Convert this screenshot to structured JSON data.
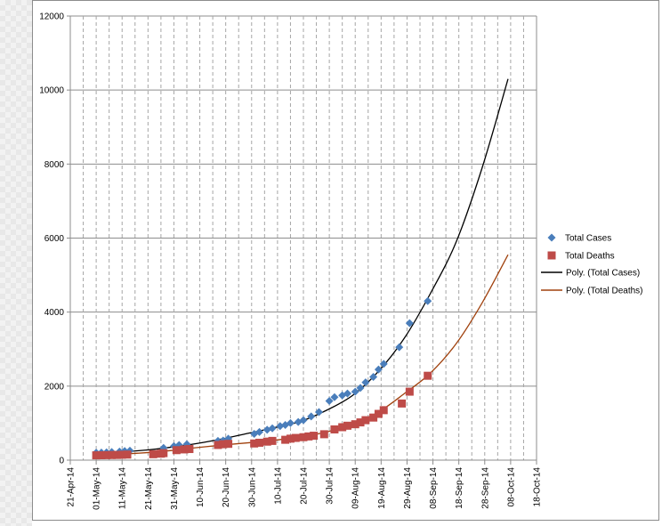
{
  "chart_data": {
    "type": "scatter",
    "title": "",
    "xlabel": "",
    "ylabel": "",
    "xlim": [
      "2014-04-21",
      "2014-10-18"
    ],
    "ylim": [
      0,
      12000
    ],
    "y_ticks": [
      "0",
      "2000",
      "4000",
      "6000",
      "8000",
      "10000",
      "12000"
    ],
    "x_ticks": [
      "21-Apr-14",
      "01-May-14",
      "11-May-14",
      "21-May-14",
      "31-May-14",
      "10-Jun-14",
      "20-Jun-14",
      "30-Jun-14",
      "10-Jul-14",
      "20-Jul-14",
      "30-Jul-14",
      "09-Aug-14",
      "19-Aug-14",
      "29-Aug-14",
      "08-Sep-14",
      "18-Sep-14",
      "28-Sep-14",
      "08-Oct-14",
      "18-Oct-14"
    ],
    "grid": {
      "horizontal": "solid",
      "vertical": "dashed"
    },
    "legend_position": "right",
    "series": [
      {
        "name": "Total Cases",
        "marker": "diamond",
        "color": "#4a7ebb",
        "points": [
          [
            "2014-05-01",
            200
          ],
          [
            "2014-05-03",
            205
          ],
          [
            "2014-05-05",
            210
          ],
          [
            "2014-05-07",
            220
          ],
          [
            "2014-05-10",
            230
          ],
          [
            "2014-05-12",
            245
          ],
          [
            "2014-05-14",
            255
          ],
          [
            "2014-05-27",
            330
          ],
          [
            "2014-05-31",
            380
          ],
          [
            "2014-06-02",
            410
          ],
          [
            "2014-06-05",
            430
          ],
          [
            "2014-06-17",
            520
          ],
          [
            "2014-06-19",
            530
          ],
          [
            "2014-06-21",
            580
          ],
          [
            "2014-07-01",
            710
          ],
          [
            "2014-07-03",
            760
          ],
          [
            "2014-07-06",
            820
          ],
          [
            "2014-07-08",
            860
          ],
          [
            "2014-07-11",
            920
          ],
          [
            "2014-07-13",
            950
          ],
          [
            "2014-07-15",
            1000
          ],
          [
            "2014-07-18",
            1030
          ],
          [
            "2014-07-20",
            1080
          ],
          [
            "2014-07-23",
            1180
          ],
          [
            "2014-07-26",
            1300
          ],
          [
            "2014-07-30",
            1600
          ],
          [
            "2014-08-01",
            1700
          ],
          [
            "2014-08-04",
            1750
          ],
          [
            "2014-08-06",
            1800
          ],
          [
            "2014-08-09",
            1850
          ],
          [
            "2014-08-11",
            1950
          ],
          [
            "2014-08-13",
            2100
          ],
          [
            "2014-08-16",
            2250
          ],
          [
            "2014-08-18",
            2450
          ],
          [
            "2014-08-20",
            2600
          ],
          [
            "2014-08-26",
            3050
          ],
          [
            "2014-08-30",
            3700
          ],
          [
            "2014-09-06",
            4300
          ]
        ]
      },
      {
        "name": "Total Deaths",
        "marker": "square",
        "color": "#be4b48",
        "points": [
          [
            "2014-05-01",
            130
          ],
          [
            "2014-05-03",
            132
          ],
          [
            "2014-05-05",
            135
          ],
          [
            "2014-05-07",
            138
          ],
          [
            "2014-05-09",
            140
          ],
          [
            "2014-05-11",
            145
          ],
          [
            "2014-05-13",
            150
          ],
          [
            "2014-05-23",
            160
          ],
          [
            "2014-05-26",
            175
          ],
          [
            "2014-05-27",
            190
          ],
          [
            "2014-06-01",
            270
          ],
          [
            "2014-06-04",
            290
          ],
          [
            "2014-06-06",
            300
          ],
          [
            "2014-06-17",
            410
          ],
          [
            "2014-06-19",
            430
          ],
          [
            "2014-06-21",
            440
          ],
          [
            "2014-07-01",
            450
          ],
          [
            "2014-07-03",
            470
          ],
          [
            "2014-07-06",
            500
          ],
          [
            "2014-07-08",
            520
          ],
          [
            "2014-07-13",
            550
          ],
          [
            "2014-07-15",
            580
          ],
          [
            "2014-07-17",
            600
          ],
          [
            "2014-07-20",
            620
          ],
          [
            "2014-07-22",
            640
          ],
          [
            "2014-07-24",
            660
          ],
          [
            "2014-07-28",
            700
          ],
          [
            "2014-08-01",
            830
          ],
          [
            "2014-08-04",
            890
          ],
          [
            "2014-08-06",
            930
          ],
          [
            "2014-08-09",
            970
          ],
          [
            "2014-08-11",
            1020
          ],
          [
            "2014-08-13",
            1080
          ],
          [
            "2014-08-16",
            1150
          ],
          [
            "2014-08-18",
            1250
          ],
          [
            "2014-08-20",
            1350
          ],
          [
            "2014-08-27",
            1530
          ],
          [
            "2014-08-30",
            1850
          ],
          [
            "2014-09-06",
            2280
          ]
        ]
      },
      {
        "name": "Poly. (Total Cases)",
        "type": "line",
        "color": "#000000",
        "points": [
          [
            "2014-04-30",
            205
          ],
          [
            "2014-05-10",
            220
          ],
          [
            "2014-05-20",
            270
          ],
          [
            "2014-05-30",
            350
          ],
          [
            "2014-06-09",
            450
          ],
          [
            "2014-06-19",
            580
          ],
          [
            "2014-06-29",
            730
          ],
          [
            "2014-07-09",
            880
          ],
          [
            "2014-07-19",
            1050
          ],
          [
            "2014-07-29",
            1350
          ],
          [
            "2014-08-08",
            1750
          ],
          [
            "2014-08-18",
            2400
          ],
          [
            "2014-08-28",
            3300
          ],
          [
            "2014-09-07",
            4500
          ],
          [
            "2014-09-17",
            5900
          ],
          [
            "2014-09-27",
            7900
          ],
          [
            "2014-10-07",
            10300
          ]
        ]
      },
      {
        "name": "Poly. (Total Deaths)",
        "type": "line",
        "color": "#a0410d",
        "points": [
          [
            "2014-04-30",
            140
          ],
          [
            "2014-05-10",
            160
          ],
          [
            "2014-05-20",
            200
          ],
          [
            "2014-05-30",
            260
          ],
          [
            "2014-06-09",
            340
          ],
          [
            "2014-06-19",
            410
          ],
          [
            "2014-06-29",
            470
          ],
          [
            "2014-07-09",
            540
          ],
          [
            "2014-07-19",
            630
          ],
          [
            "2014-07-29",
            760
          ],
          [
            "2014-08-08",
            980
          ],
          [
            "2014-08-18",
            1300
          ],
          [
            "2014-08-28",
            1800
          ],
          [
            "2014-09-07",
            2350
          ],
          [
            "2014-09-17",
            3150
          ],
          [
            "2014-09-27",
            4250
          ],
          [
            "2014-10-07",
            5550
          ]
        ]
      }
    ]
  }
}
